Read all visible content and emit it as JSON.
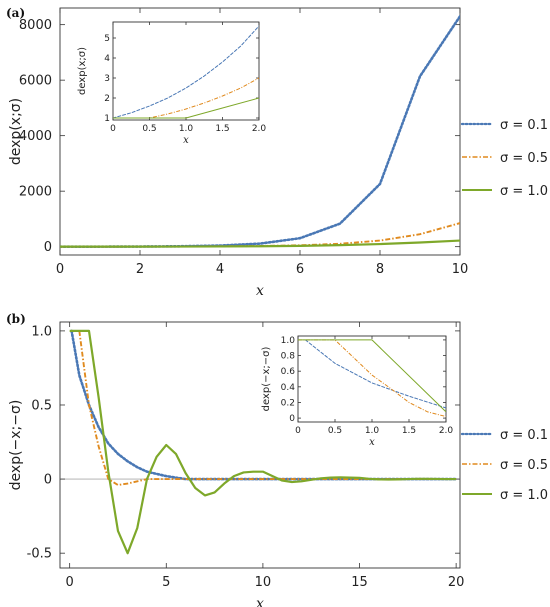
{
  "chart_data": [
    {
      "panel_label": "(a)",
      "type": "line",
      "xlabel": "x",
      "ylabel": "dexp(x;σ)",
      "xlim": [
        0,
        10
      ],
      "ylim": [
        -300,
        8600
      ],
      "xticks": [
        0,
        2,
        4,
        6,
        8,
        10
      ],
      "yticks": [
        0,
        2000,
        4000,
        6000,
        8000
      ],
      "legend": "right",
      "series": [
        {
          "name": "σ = 0.1",
          "style": "dotted",
          "color": "#4a78b5",
          "x": [
            0,
            1,
            2,
            3,
            4,
            5,
            6,
            7,
            8,
            9,
            10
          ],
          "y": [
            1,
            1.1,
            5.5,
            15,
            40,
            110,
            305,
            830,
            2260,
            6140,
            8300
          ]
        },
        {
          "name": "σ = 0.5",
          "style": "dashdot",
          "color": "#e08a1e",
          "x": [
            0,
            1,
            2,
            3,
            4,
            5,
            6,
            7,
            8,
            9,
            10
          ],
          "y": [
            1,
            1.1,
            3,
            6,
            12,
            24,
            50,
            105,
            220,
            450,
            850
          ]
        },
        {
          "name": "σ = 1.0",
          "style": "solid",
          "color": "#7ea82a",
          "x": [
            0,
            1,
            2,
            3,
            4,
            5,
            6,
            7,
            8,
            9,
            10
          ],
          "y": [
            1,
            1,
            2,
            4,
            8,
            15,
            30,
            55,
            95,
            150,
            220
          ]
        }
      ],
      "inset": {
        "xlabel": "x",
        "ylabel": "dexp(x;σ)",
        "xlim": [
          0,
          2
        ],
        "ylim": [
          0.9,
          5.8
        ],
        "xticks": [
          0,
          0.5,
          1.0,
          1.5,
          2.0
        ],
        "xtick_labels": [
          "0",
          "0.5",
          "1.0",
          "1.5",
          "2.0"
        ],
        "yticks": [
          1,
          2,
          3,
          4,
          5
        ],
        "series": [
          {
            "name": "σ = 0.1",
            "x": [
              0,
              0.25,
              0.5,
              0.75,
              1.0,
              1.25,
              1.5,
              1.75,
              2.0
            ],
            "y": [
              1.0,
              1.26,
              1.6,
              2.0,
              2.5,
              3.1,
              3.8,
              4.6,
              5.6
            ]
          },
          {
            "name": "σ = 0.5",
            "x": [
              0,
              0.5,
              0.75,
              1.0,
              1.25,
              1.5,
              1.75,
              2.0
            ],
            "y": [
              1.0,
              1.0,
              1.2,
              1.45,
              1.75,
              2.1,
              2.5,
              3.0
            ]
          },
          {
            "name": "σ = 1.0",
            "x": [
              0,
              1.0,
              1.5,
              2.0
            ],
            "y": [
              1.0,
              1.0,
              1.5,
              2.0
            ]
          }
        ]
      }
    },
    {
      "panel_label": "(b)",
      "type": "line",
      "xlabel": "x",
      "ylabel": "dexp(−x;−σ)",
      "xlim": [
        -0.5,
        20.2
      ],
      "ylim": [
        -0.6,
        1.06
      ],
      "xticks": [
        0,
        5,
        10,
        15,
        20
      ],
      "yticks": [
        -0.5,
        0,
        0.5,
        1.0
      ],
      "ytick_labels": [
        "-0.5",
        "0",
        "0.5",
        "1.0"
      ],
      "legend": "right",
      "series": [
        {
          "name": "σ = 0.1",
          "style": "dotted",
          "color": "#4a78b5",
          "x": [
            0.1,
            0.5,
            1.0,
            1.5,
            2.0,
            2.5,
            3.0,
            3.5,
            4.0,
            5.0,
            6.0,
            8.0,
            10.0,
            20.0
          ],
          "y": [
            1.0,
            0.7,
            0.5,
            0.35,
            0.24,
            0.17,
            0.12,
            0.08,
            0.05,
            0.02,
            0.0,
            0.0,
            0.0,
            0.0
          ]
        },
        {
          "name": "σ = 0.5",
          "style": "dashdot",
          "color": "#e08a1e",
          "x": [
            0.5,
            1.0,
            1.5,
            2.0,
            2.5,
            3.0,
            3.5,
            4.0,
            5.0,
            6.0,
            8.0,
            20.0
          ],
          "y": [
            1.0,
            0.5,
            0.22,
            0.0,
            -0.04,
            -0.03,
            -0.015,
            0.0,
            0.0,
            0.0,
            0.0,
            0.0
          ]
        },
        {
          "name": "σ = 1.0",
          "style": "solid",
          "color": "#7ea82a",
          "x": [
            0,
            1.0,
            1.5,
            2.0,
            2.5,
            3.0,
            3.5,
            4.0,
            4.5,
            5.0,
            5.5,
            6.0,
            6.5,
            7.0,
            7.5,
            8.0,
            8.5,
            9.0,
            9.5,
            10.0,
            10.5,
            11.0,
            11.5,
            12.0,
            12.5,
            13.0,
            13.5,
            14.0,
            14.5,
            15.0,
            15.5,
            16.0,
            16.5,
            17.0,
            17.5,
            18.0,
            18.5,
            19.0,
            19.5,
            20.0
          ],
          "y": [
            1.0,
            1.0,
            0.55,
            0.05,
            -0.35,
            -0.5,
            -0.33,
            0.0,
            0.15,
            0.23,
            0.17,
            0.04,
            -0.06,
            -0.11,
            -0.09,
            -0.03,
            0.02,
            0.045,
            0.05,
            0.05,
            0.02,
            -0.01,
            -0.02,
            -0.015,
            -0.005,
            0.005,
            0.01,
            0.012,
            0.01,
            0.008,
            0.002,
            -0.002,
            -0.003,
            -0.002,
            0.0,
            0.002,
            0.002,
            0.001,
            0.0,
            0.0
          ]
        }
      ],
      "inset": {
        "xlabel": "x",
        "ylabel": "dexp(−x;−σ)",
        "xlim": [
          0,
          2
        ],
        "ylim": [
          -0.05,
          1.05
        ],
        "xticks": [
          0,
          0.5,
          1.0,
          1.5,
          2.0
        ],
        "xtick_labels": [
          "0",
          "0.5",
          "1.0",
          "1.5",
          "2.0"
        ],
        "yticks": [
          0,
          0.2,
          0.4,
          0.6,
          0.8,
          1.0
        ],
        "ytick_labels": [
          "0",
          "0.2",
          "0.4",
          "0.6",
          "0.8",
          "1.0"
        ],
        "series": [
          {
            "name": "σ = 0.1",
            "x": [
              0.1,
              0.5,
              1.0,
              1.5,
              2.0
            ],
            "y": [
              1.0,
              0.7,
              0.45,
              0.28,
              0.13
            ]
          },
          {
            "name": "σ = 0.5",
            "x": [
              0,
              0.5,
              1.0,
              1.25,
              1.5,
              1.75,
              2.0
            ],
            "y": [
              1.0,
              1.0,
              0.55,
              0.38,
              0.2,
              0.08,
              0.02
            ]
          },
          {
            "name": "σ = 1.0",
            "x": [
              0,
              1.0,
              2.0
            ],
            "y": [
              1.0,
              1.0,
              0.08
            ]
          }
        ]
      }
    }
  ]
}
